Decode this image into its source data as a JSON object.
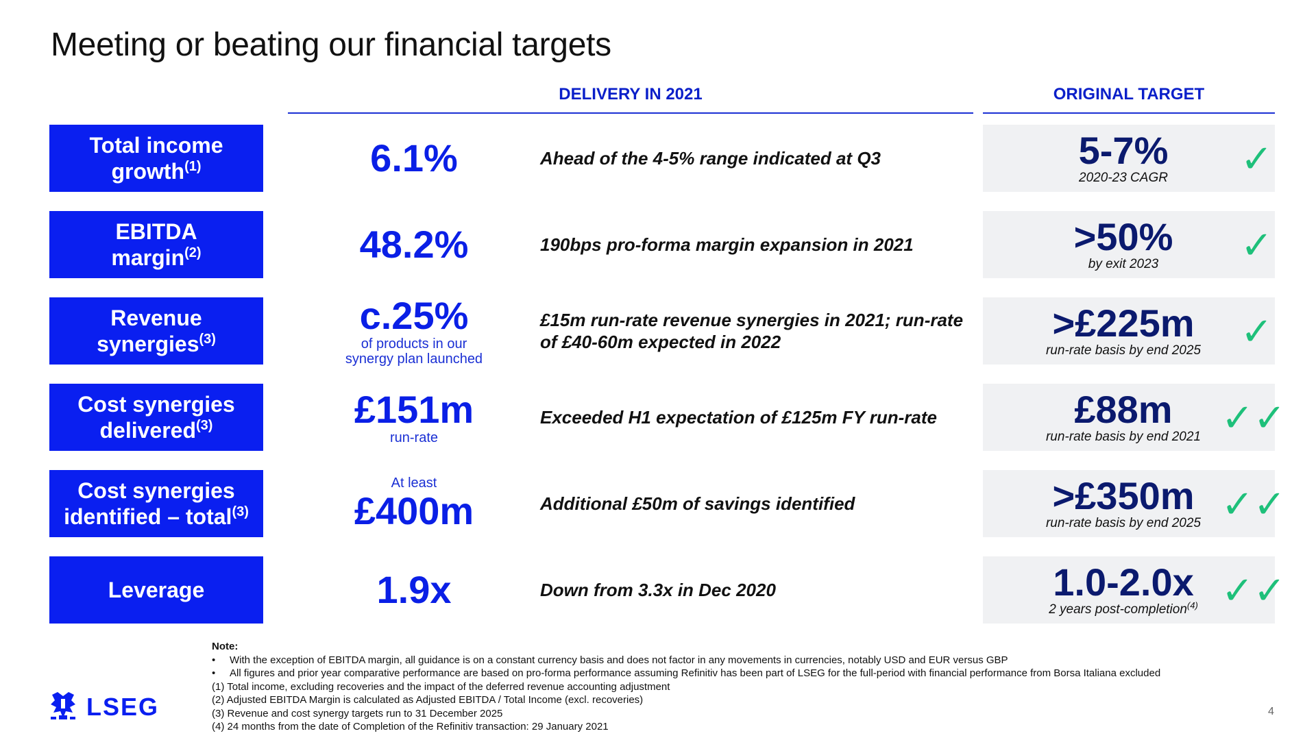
{
  "title": "Meeting or beating our financial targets",
  "headers": {
    "delivery": "DELIVERY IN 2021",
    "target": "ORIGINAL TARGET"
  },
  "rows": [
    {
      "label_line1": "Total income",
      "label_line2": "growth",
      "label_sup": "(1)",
      "value_pre": "",
      "value": "6.1%",
      "value_post": "",
      "description": "Ahead of the 4-5% range indicated at Q3",
      "target": "5-7%",
      "target_sub": "2020-23 CAGR",
      "target_sup": "",
      "checks": "✓"
    },
    {
      "label_line1": "EBITDA",
      "label_line2": "margin",
      "label_sup": "(2)",
      "value_pre": "",
      "value": "48.2%",
      "value_post": "",
      "description": "190bps pro-forma margin expansion in 2021",
      "target": ">50%",
      "target_sub": "by exit 2023",
      "target_sup": "",
      "checks": "✓"
    },
    {
      "label_line1": "Revenue",
      "label_line2": "synergies",
      "label_sup": "(3)",
      "value_pre": "",
      "value": "c.25%",
      "value_post": "of products in our synergy plan launched",
      "description": "£15m run-rate revenue synergies in 2021; run-rate of £40-60m expected in 2022",
      "target": ">£225m",
      "target_sub": "run-rate basis by end 2025",
      "target_sup": "",
      "checks": "✓"
    },
    {
      "label_line1": "Cost synergies",
      "label_line2": "delivered",
      "label_sup": "(3)",
      "value_pre": "",
      "value": "£151m",
      "value_post": "run-rate",
      "description": "Exceeded H1 expectation of £125m FY run-rate",
      "target": "£88m",
      "target_sub": "run-rate basis by end 2021",
      "target_sup": "",
      "checks": "✓✓"
    },
    {
      "label_line1": "Cost synergies",
      "label_line2": "identified – total",
      "label_sup": "(3)",
      "value_pre": "At least",
      "value": "£400m",
      "value_post": "",
      "description": "Additional £50m of savings identified",
      "target": ">£350m",
      "target_sub": "run-rate basis by end 2025",
      "target_sup": "",
      "checks": "✓✓"
    },
    {
      "label_line1": "Leverage",
      "label_line2": "",
      "label_sup": "",
      "value_pre": "",
      "value": "1.9x",
      "value_post": "",
      "description": "Down from 3.3x in Dec 2020",
      "target": "1.0-2.0x",
      "target_sub": "2 years post-completion",
      "target_sup": "(4)",
      "checks": "✓✓"
    }
  ],
  "notes": {
    "heading": "Note:",
    "bullets": [
      "With the exception of EBITDA margin, all guidance is on a constant currency basis and does not factor in any movements in currencies, notably USD and EUR versus GBP",
      "All figures and prior year comparative performance are based on pro-forma performance assuming Refinitiv has been part of LSEG for the full-period with financial performance from Borsa Italiana excluded"
    ],
    "footnotes": [
      "(1) Total income, excluding recoveries and the impact of the deferred revenue accounting adjustment",
      "(2) Adjusted EBITDA Margin is calculated as Adjusted EBITDA / Total Income (excl. recoveries)",
      "(3) Revenue and cost synergy targets run to 31 December 2025",
      "(4) 24 months from the date of Completion of the Refinitiv transaction: 29 January 2021"
    ]
  },
  "logo_text": "LSEG",
  "page_number": "4",
  "colors": {
    "brand_blue": "#0a1ff0",
    "navy": "#0b1a6e",
    "check_green": "#1ec07a",
    "target_bg": "#f0f1f3"
  }
}
